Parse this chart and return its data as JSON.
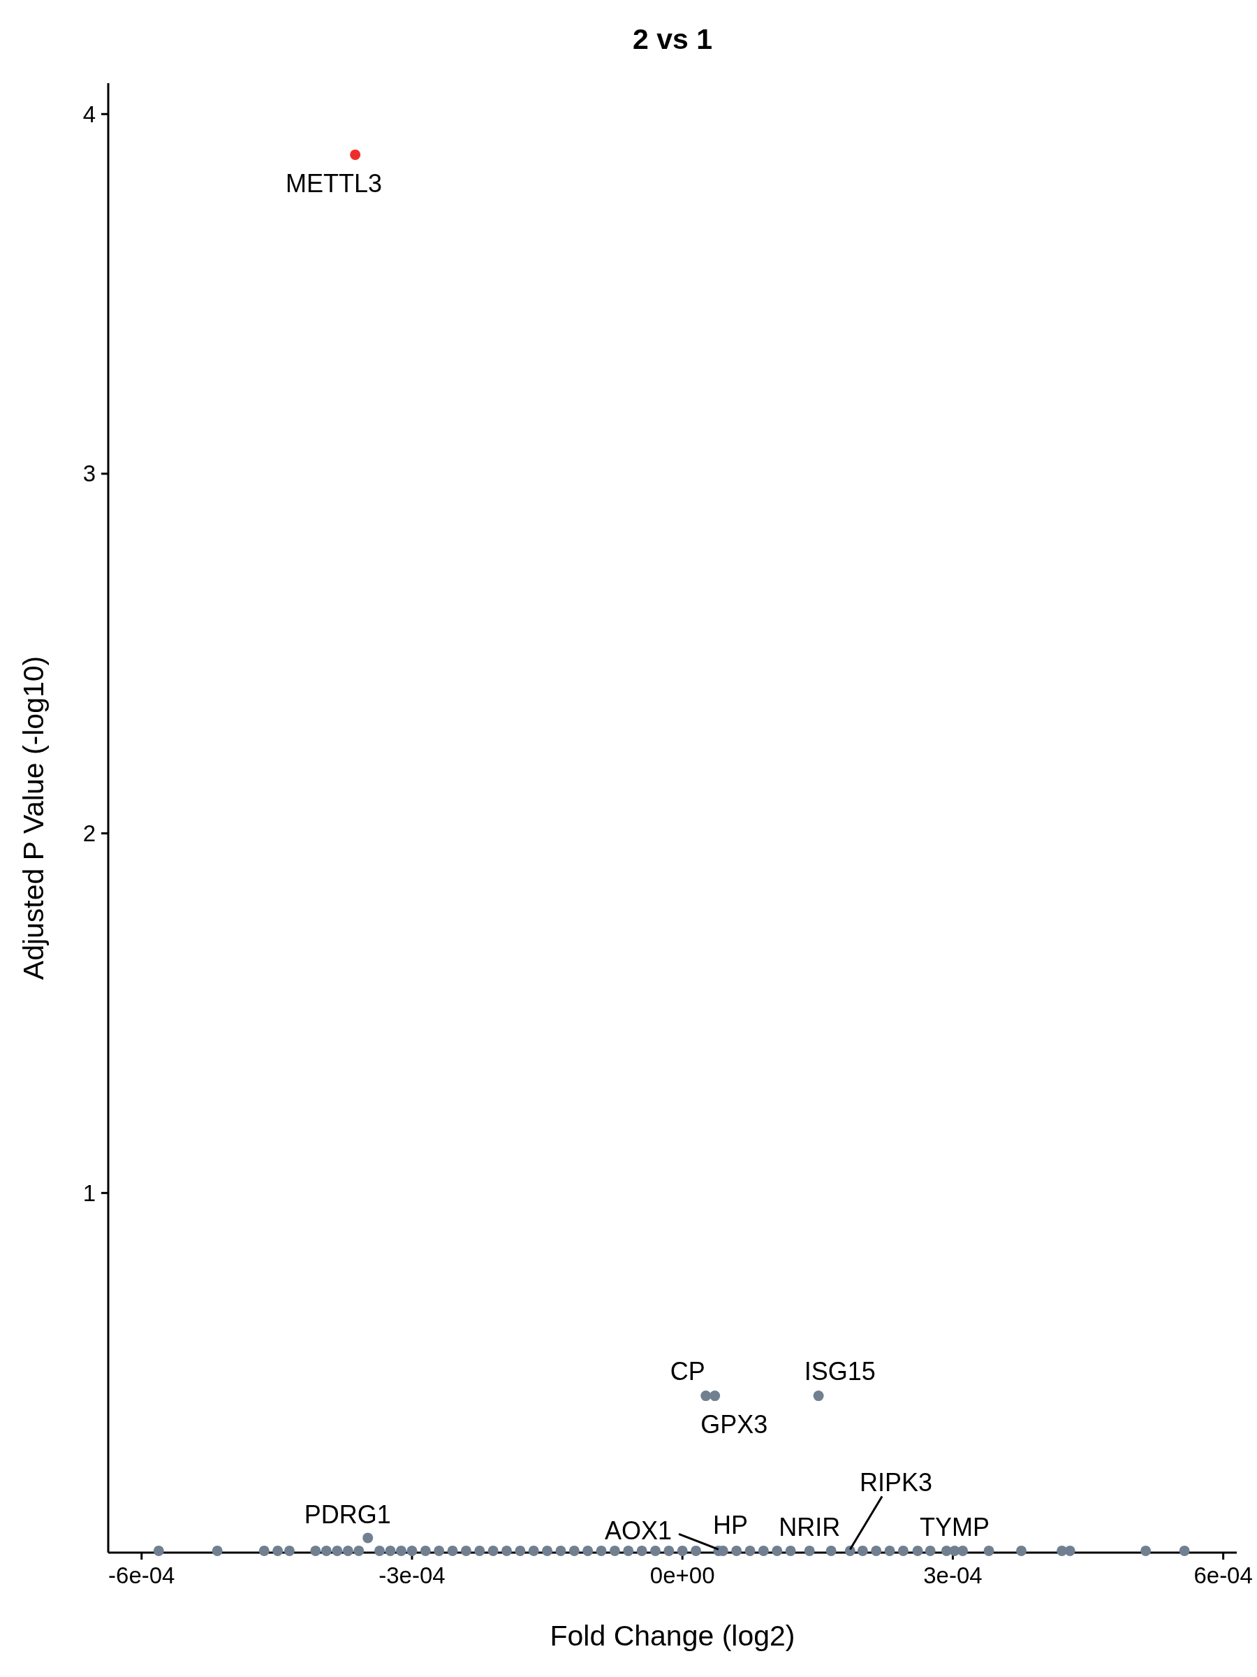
{
  "chart_data": {
    "type": "scatter",
    "title": "2 vs 1",
    "xlabel": "Fold Change (log2)",
    "ylabel": "Adjusted P Value (-log10)",
    "xlim": [
      -0.000637,
      0.000615
    ],
    "ylim": [
      0,
      4.086
    ],
    "xticks": [
      {
        "value": -0.0006,
        "label": "-6e-04"
      },
      {
        "value": -0.0003,
        "label": "-3e-04"
      },
      {
        "value": 0,
        "label": "0e+00"
      },
      {
        "value": 0.0003,
        "label": "3e-04"
      },
      {
        "value": 0.0006,
        "label": "6e-04"
      }
    ],
    "yticks": [
      1,
      2,
      3,
      4
    ],
    "grid": false,
    "marker": "circle",
    "series": [
      {
        "color": "#ee2c2c",
        "x": [
          -0.000363
        ],
        "values": [
          3.887
        ]
      },
      {
        "color": "#708090",
        "x": [
          2.6e-05,
          3.6e-05,
          0.000151,
          -0.000349,
          4e-05,
          4.5e-05,
          0.000141,
          0.000186,
          0.000302,
          -0.000581,
          -0.000516,
          -0.000464,
          -0.000449,
          -0.000436,
          -0.000407,
          -0.000395,
          -0.000383,
          -0.000371,
          -0.000359,
          -0.000336,
          -0.000324,
          -0.000312,
          -0.0003,
          -0.000285,
          -0.00027,
          -0.000255,
          -0.00024,
          -0.000225,
          -0.00021,
          -0.000195,
          -0.00018,
          -0.000165,
          -0.00015,
          -0.000135,
          -0.00012,
          -0.000105,
          -9e-05,
          -7.5e-05,
          -6e-05,
          -4.5e-05,
          -3e-05,
          -1.5e-05,
          0,
          1.5e-05,
          6e-05,
          7.5e-05,
          9e-05,
          0.000105,
          0.00012,
          0.000165,
          0.0002,
          0.000215,
          0.00023,
          0.000245,
          0.000261,
          0.000275,
          0.000293,
          0.000311,
          0.00034,
          0.000376,
          0.000421,
          0.00043,
          0.000514,
          0.000557
        ],
        "values": [
          0.436,
          0.436,
          0.436,
          0.041,
          0.005,
          0.005,
          0.005,
          0.005,
          0.005,
          0.005,
          0.005,
          0.005,
          0.005,
          0.005,
          0.005,
          0.005,
          0.005,
          0.005,
          0.005,
          0.005,
          0.005,
          0.005,
          0.005,
          0.005,
          0.005,
          0.005,
          0.005,
          0.005,
          0.005,
          0.005,
          0.005,
          0.005,
          0.005,
          0.005,
          0.005,
          0.005,
          0.005,
          0.005,
          0.005,
          0.005,
          0.005,
          0.005,
          0.005,
          0.005,
          0.005,
          0.005,
          0.005,
          0.005,
          0.005,
          0.005,
          0.005,
          0.005,
          0.005,
          0.005,
          0.005,
          0.005,
          0.005,
          0.005,
          0.005,
          0.005,
          0.005,
          0.005,
          0.005,
          0.005
        ]
      }
    ],
    "annotations": [
      {
        "text": "METTL3",
        "x": -0.000363,
        "y": 3.887
      },
      {
        "text": "CP",
        "x": 2.6e-05,
        "y": 0.436
      },
      {
        "text": "GPX3",
        "x": 3.6e-05,
        "y": 0.436
      },
      {
        "text": "ISG15",
        "x": 0.000151,
        "y": 0.436
      },
      {
        "text": "PDRG1",
        "x": -0.000349,
        "y": 0.041
      },
      {
        "text": "AOX1",
        "x": 4e-05,
        "y": 0.005
      },
      {
        "text": "HP",
        "x": 4.5e-05,
        "y": 0.005
      },
      {
        "text": "NRIR",
        "x": 0.000141,
        "y": 0.005
      },
      {
        "text": "RIPK3",
        "x": 0.000186,
        "y": 0.005
      },
      {
        "text": "TYMP",
        "x": 0.000302,
        "y": 0.005
      }
    ]
  }
}
